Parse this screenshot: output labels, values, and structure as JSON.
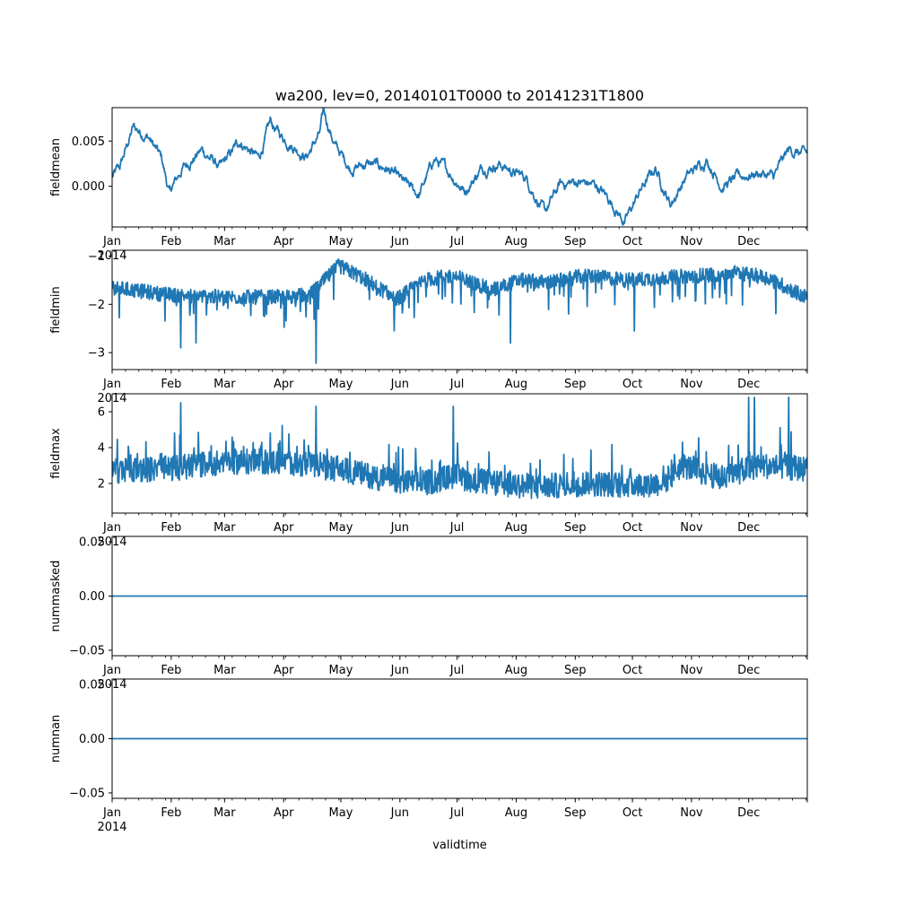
{
  "chart_data": [
    {
      "type": "line",
      "title": "wa200, lev=0, 20140101T0000 to 20141231T1800",
      "ylabel": "fieldmean",
      "xlabel": "",
      "ylim": [
        -0.0045,
        0.0087
      ],
      "yticks": [
        0.0,
        0.005
      ],
      "ytick_labels": [
        "0.000",
        "0.005"
      ],
      "series": [
        {
          "name": "fieldmean",
          "color": "#1f77b4",
          "kind": "smooth",
          "keypoints": [
            [
              1,
              0.001
            ],
            [
              5,
              0.002
            ],
            [
              12,
              0.0065
            ],
            [
              20,
              0.0055
            ],
            [
              27,
              0.003
            ],
            [
              31,
              -0.0008
            ],
            [
              38,
              0.002
            ],
            [
              48,
              0.004
            ],
            [
              58,
              0.002
            ],
            [
              68,
              0.005
            ],
            [
              78,
              0.003
            ],
            [
              84,
              0.007
            ],
            [
              90,
              0.0055
            ],
            [
              96,
              0.0045
            ],
            [
              103,
              0.0033
            ],
            [
              110,
              0.0058
            ],
            [
              112,
              0.0082
            ],
            [
              118,
              0.0045
            ],
            [
              126,
              0.002
            ],
            [
              135,
              0.0025
            ],
            [
              145,
              0.002
            ],
            [
              153,
              0.0005
            ],
            [
              162,
              -0.001
            ],
            [
              170,
              0.003
            ],
            [
              178,
              0.0015
            ],
            [
              186,
              -0.0005
            ],
            [
              195,
              0.002
            ],
            [
              204,
              0.0025
            ],
            [
              212,
              0.0015
            ],
            [
              218,
              0.001
            ],
            [
              228,
              -0.003
            ],
            [
              236,
              0.0002
            ],
            [
              245,
              0.0005
            ],
            [
              255,
              0.0001
            ],
            [
              262,
              -0.0015
            ],
            [
              270,
              -0.004
            ],
            [
              278,
              -0.0005
            ],
            [
              286,
              0.002
            ],
            [
              294,
              -0.002
            ],
            [
              302,
              0.001
            ],
            [
              313,
              0.003
            ],
            [
              321,
              0.0
            ],
            [
              330,
              0.001
            ],
            [
              340,
              0.0015
            ],
            [
              348,
              0.001
            ],
            [
              356,
              0.004
            ],
            [
              365,
              0.0035
            ]
          ],
          "noise": 0.0008
        }
      ]
    },
    {
      "type": "line",
      "title": "",
      "ylabel": "fieldmin",
      "xlabel": "",
      "ylim": [
        -3.35,
        -0.88
      ],
      "yticks": [
        -3,
        -2,
        -1
      ],
      "ytick_labels": [
        "−3",
        "−2",
        "−1"
      ],
      "series": [
        {
          "name": "fieldmin",
          "color": "#1f77b4",
          "kind": "spiky-down",
          "keypoints": [
            [
              1,
              -1.65
            ],
            [
              30,
              -1.8
            ],
            [
              60,
              -1.85
            ],
            [
              90,
              -1.85
            ],
            [
              105,
              -1.8
            ],
            [
              120,
              -1.2
            ],
            [
              135,
              -1.5
            ],
            [
              150,
              -1.9
            ],
            [
              165,
              -1.5
            ],
            [
              180,
              -1.4
            ],
            [
              200,
              -1.7
            ],
            [
              215,
              -1.5
            ],
            [
              230,
              -1.55
            ],
            [
              250,
              -1.4
            ],
            [
              270,
              -1.5
            ],
            [
              290,
              -1.45
            ],
            [
              310,
              -1.4
            ],
            [
              330,
              -1.35
            ],
            [
              345,
              -1.45
            ],
            [
              365,
              -1.85
            ]
          ],
          "noise": 0.22,
          "extremes": [
            [
              108,
              -3.22
            ],
            [
              37,
              -2.9
            ],
            [
              45,
              -2.8
            ],
            [
              210,
              -2.8
            ],
            [
              275,
              -2.55
            ]
          ]
        }
      ]
    },
    {
      "type": "line",
      "title": "",
      "ylabel": "fieldmax",
      "xlabel": "",
      "ylim": [
        0.35,
        7.0
      ],
      "yticks": [
        2,
        4,
        6
      ],
      "ytick_labels": [
        "2",
        "4",
        "6"
      ],
      "series": [
        {
          "name": "fieldmax",
          "color": "#1f77b4",
          "kind": "spiky-up",
          "keypoints": [
            [
              1,
              2.5
            ],
            [
              30,
              2.6
            ],
            [
              60,
              3.0
            ],
            [
              90,
              3.0
            ],
            [
              120,
              2.6
            ],
            [
              150,
              1.9
            ],
            [
              165,
              1.8
            ],
            [
              180,
              2.2
            ],
            [
              200,
              1.8
            ],
            [
              225,
              1.6
            ],
            [
              250,
              1.8
            ],
            [
              275,
              1.7
            ],
            [
              290,
              1.8
            ],
            [
              300,
              2.8
            ],
            [
              320,
              2.1
            ],
            [
              340,
              2.8
            ],
            [
              365,
              2.6
            ]
          ],
          "noise": 1.1,
          "extremes": [
            [
              335,
              6.8
            ],
            [
              338,
              6.8
            ],
            [
              356,
              6.8
            ],
            [
              37,
              6.5
            ],
            [
              108,
              6.3
            ],
            [
              180,
              6.3
            ]
          ]
        }
      ]
    },
    {
      "type": "line",
      "title": "",
      "ylabel": "nummasked",
      "xlabel": "",
      "ylim": [
        -0.055,
        0.055
      ],
      "yticks": [
        -0.05,
        0.0,
        0.05
      ],
      "ytick_labels": [
        "−0.05",
        "0.00",
        "0.05"
      ],
      "series": [
        {
          "name": "nummasked",
          "color": "#1f77b4",
          "kind": "flat",
          "value": 0
        }
      ]
    },
    {
      "type": "line",
      "title": "",
      "ylabel": "numnan",
      "xlabel": "validtime",
      "ylim": [
        -0.055,
        0.055
      ],
      "yticks": [
        -0.05,
        0.0,
        0.05
      ],
      "ytick_labels": [
        "−0.05",
        "0.00",
        "0.05"
      ],
      "series": [
        {
          "name": "numnan",
          "color": "#1f77b4",
          "kind": "flat",
          "value": 0
        }
      ]
    }
  ],
  "x_axis": {
    "range_days": [
      1,
      365.75
    ],
    "month_labels": [
      "Jan",
      "Feb",
      "Mar",
      "Apr",
      "May",
      "Jun",
      "Jul",
      "Aug",
      "Sep",
      "Oct",
      "Nov",
      "Dec"
    ],
    "month_start_days": [
      1,
      32,
      60,
      91,
      121,
      152,
      182,
      213,
      244,
      274,
      305,
      335
    ],
    "year_label": "2014"
  }
}
